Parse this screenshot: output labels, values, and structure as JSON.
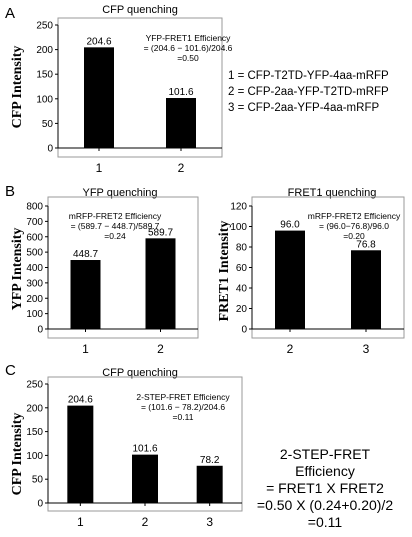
{
  "panels": {
    "A": "A",
    "B": "B",
    "C": "C"
  },
  "colors": {
    "bar": "#000000",
    "axis": "#000000",
    "frame": "#9a9a9a"
  },
  "legend": {
    "items": [
      "1 = CFP-T2TD-YFP-4aa-mRFP",
      "2 = CFP-2aa-YFP-T2TD-mRFP",
      "3 = CFP-2aa-YFP-4aa-mRFP"
    ]
  },
  "summary": {
    "lines": [
      "2-STEP-FRET Efficiency",
      "= FRET1 X FRET2",
      "=0.50 X (0.24+0.20)/2",
      "=0.11"
    ]
  },
  "chart_data": [
    {
      "id": "A",
      "type": "bar",
      "title": "CFP quenching",
      "ylabel": "CFP Intensity",
      "categories": [
        "1",
        "2"
      ],
      "values": [
        204.6,
        101.6
      ],
      "value_labels": [
        "204.6",
        "101.6"
      ],
      "ylim": [
        0,
        250
      ],
      "yticks": [
        0,
        50,
        100,
        150,
        200,
        250
      ],
      "annotation": [
        "YFP-FRET1 Efficiency",
        "= (204.6 − 101.6)/204.6",
        "=0.50"
      ]
    },
    {
      "id": "B1",
      "type": "bar",
      "title": "YFP quenching",
      "ylabel": "YFP Intensity",
      "categories": [
        "1",
        "2"
      ],
      "values": [
        448.7,
        589.7
      ],
      "value_labels": [
        "448.7",
        "589.7"
      ],
      "ylim": [
        0,
        800
      ],
      "yticks": [
        0,
        100,
        200,
        300,
        400,
        500,
        600,
        700,
        800
      ],
      "annotation": [
        "mRFP-FRET2 Efficiency",
        "= (589.7 − 448.7)/589.7",
        "=0.24"
      ]
    },
    {
      "id": "B2",
      "type": "bar",
      "title": "FRET1 quenching",
      "ylabel": "FRET1 Intensity",
      "categories": [
        "2",
        "3"
      ],
      "values": [
        96.0,
        76.8
      ],
      "value_labels": [
        "96.0",
        "76.8"
      ],
      "ylim": [
        0,
        120
      ],
      "yticks": [
        0,
        20,
        40,
        60,
        80,
        100,
        120
      ],
      "annotation": [
        "mRFP-FRET2 Efficiency",
        "= (96.0−76.8)/96.0",
        "=0.20"
      ]
    },
    {
      "id": "C",
      "type": "bar",
      "title": "CFP quenching",
      "ylabel": "CFP Intensity",
      "categories": [
        "1",
        "2",
        "3"
      ],
      "values": [
        204.6,
        101.6,
        78.2
      ],
      "value_labels": [
        "204.6",
        "101.6",
        "78.2"
      ],
      "ylim": [
        0,
        250
      ],
      "yticks": [
        0,
        50,
        100,
        150,
        200,
        250
      ],
      "annotation": [
        "2-STEP-FRET Efficiency",
        "= (101.6 − 78.2)/204.6",
        "=0.11"
      ]
    }
  ]
}
